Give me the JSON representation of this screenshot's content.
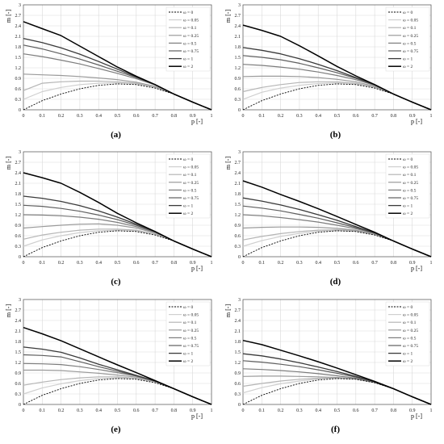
{
  "figure": {
    "panel_labels": [
      "(a)",
      "(b)",
      "(c)",
      "(d)",
      "(e)",
      "(f)"
    ]
  },
  "legend_entries": [
    "ω = 0",
    "ω = 0.05",
    "ω = 0.1",
    "ω = 0.25",
    "ω = 0.5",
    "ω = 0.75",
    "ω = 1",
    "ω = 2"
  ],
  "series_colors": [
    "#000000",
    "#cfcfcf",
    "#b5b5b5",
    "#9a9a9a",
    "#7c7c7c",
    "#5e5e5e",
    "#3a3a3a",
    "#000000"
  ],
  "chart_data": [
    {
      "type": "line",
      "panel": "(a)",
      "xlabel": "p [-]",
      "ylabel": "m [-]",
      "xlim": [
        0,
        1
      ],
      "ylim": [
        0,
        3
      ],
      "grid": true,
      "legend": "top-right",
      "xticks": [
        "0",
        "0.1",
        "0.2",
        "0.3",
        "0.4",
        "0.5",
        "0.6",
        "0.7",
        "0.8",
        "0.9",
        "1"
      ],
      "yticks": [
        "0",
        "0.3",
        "0.6",
        "0.9",
        "1.2",
        "1.5",
        "1.8",
        "2.1",
        "2.4",
        "2.7",
        "3"
      ],
      "x": [
        0,
        0.1,
        0.2,
        0.3,
        0.4,
        0.5,
        0.6,
        0.7,
        0.8,
        0.9,
        1.0
      ],
      "series": [
        {
          "name": "ω = 0",
          "values": [
            0.0,
            0.26,
            0.45,
            0.6,
            0.7,
            0.74,
            0.72,
            0.62,
            0.45,
            0.22,
            0.0
          ]
        },
        {
          "name": "ω = 0.05",
          "values": [
            0.3,
            0.52,
            0.64,
            0.72,
            0.76,
            0.77,
            0.74,
            0.64,
            0.45,
            0.22,
            0.0
          ]
        },
        {
          "name": "ω = 0.1",
          "values": [
            0.55,
            0.76,
            0.8,
            0.82,
            0.82,
            0.8,
            0.76,
            0.65,
            0.45,
            0.22,
            0.0
          ]
        },
        {
          "name": "ω = 0.25",
          "values": [
            1.02,
            1.0,
            0.98,
            0.95,
            0.91,
            0.86,
            0.79,
            0.67,
            0.45,
            0.22,
            0.0
          ]
        },
        {
          "name": "ω = 0.5",
          "values": [
            1.6,
            1.52,
            1.42,
            1.31,
            1.18,
            1.04,
            0.89,
            0.71,
            0.45,
            0.22,
            0.0
          ]
        },
        {
          "name": "ω = 0.75",
          "values": [
            1.85,
            1.74,
            1.6,
            1.45,
            1.28,
            1.1,
            0.92,
            0.72,
            0.45,
            0.22,
            0.0
          ]
        },
        {
          "name": "ω = 1",
          "values": [
            2.04,
            1.92,
            1.77,
            1.59,
            1.38,
            1.16,
            0.94,
            0.72,
            0.45,
            0.22,
            0.0
          ]
        },
        {
          "name": "ω = 2",
          "values": [
            2.52,
            2.32,
            2.12,
            1.82,
            1.52,
            1.22,
            0.96,
            0.72,
            0.45,
            0.22,
            0.0
          ]
        }
      ]
    },
    {
      "type": "line",
      "panel": "(b)",
      "xlabel": "p [-]",
      "ylabel": "m [-]",
      "xlim": [
        0,
        1
      ],
      "ylim": [
        0,
        3
      ],
      "grid": true,
      "legend": "top-right",
      "xticks": [
        "0",
        "0.1",
        "0.2",
        "0.3",
        "0.4",
        "0.5",
        "0.6",
        "0.7",
        "0.8",
        "0.9",
        "1"
      ],
      "yticks": [
        "0",
        "0.3",
        "0.6",
        "0.9",
        "1.2",
        "1.5",
        "1.8",
        "2.1",
        "2.4",
        "2.7",
        "3"
      ],
      "x": [
        0,
        0.1,
        0.2,
        0.3,
        0.4,
        0.5,
        0.6,
        0.7,
        0.8,
        0.9,
        1.0
      ],
      "series": [
        {
          "name": "ω = 0",
          "values": [
            0.0,
            0.26,
            0.45,
            0.6,
            0.7,
            0.74,
            0.72,
            0.62,
            0.45,
            0.22,
            0.0
          ]
        },
        {
          "name": "ω = 0.05",
          "values": [
            0.3,
            0.5,
            0.62,
            0.7,
            0.75,
            0.77,
            0.74,
            0.64,
            0.45,
            0.22,
            0.0
          ]
        },
        {
          "name": "ω = 0.1",
          "values": [
            0.52,
            0.64,
            0.72,
            0.78,
            0.8,
            0.8,
            0.76,
            0.65,
            0.45,
            0.22,
            0.0
          ]
        },
        {
          "name": "ω = 0.25",
          "values": [
            0.95,
            0.96,
            0.96,
            0.95,
            0.92,
            0.87,
            0.8,
            0.67,
            0.45,
            0.22,
            0.0
          ]
        },
        {
          "name": "ω = 0.5",
          "values": [
            1.3,
            1.27,
            1.22,
            1.16,
            1.08,
            0.98,
            0.86,
            0.7,
            0.45,
            0.22,
            0.0
          ]
        },
        {
          "name": "ω = 0.75",
          "values": [
            1.55,
            1.5,
            1.43,
            1.33,
            1.2,
            1.06,
            0.9,
            0.71,
            0.45,
            0.22,
            0.0
          ]
        },
        {
          "name": "ω = 1",
          "values": [
            1.78,
            1.7,
            1.6,
            1.46,
            1.3,
            1.12,
            0.92,
            0.72,
            0.45,
            0.22,
            0.0
          ]
        },
        {
          "name": "ω = 2",
          "values": [
            2.42,
            2.27,
            2.1,
            1.83,
            1.54,
            1.24,
            0.97,
            0.72,
            0.45,
            0.22,
            0.0
          ]
        }
      ]
    },
    {
      "type": "line",
      "panel": "(c)",
      "xlabel": "p [-]",
      "ylabel": "m [-]",
      "xlim": [
        0,
        1
      ],
      "ylim": [
        0,
        3
      ],
      "grid": true,
      "legend": "top-right",
      "xticks": [
        "0",
        "0.1",
        "0.2",
        "0.3",
        "0.4",
        "0.5",
        "0.6",
        "0.7",
        "0.8",
        "0.9",
        "1"
      ],
      "yticks": [
        "0",
        "0.3",
        "0.6",
        "0.9",
        "1.2",
        "1.5",
        "1.8",
        "2.1",
        "2.4",
        "2.7",
        "3"
      ],
      "x": [
        0,
        0.1,
        0.2,
        0.3,
        0.4,
        0.5,
        0.6,
        0.7,
        0.8,
        0.9,
        1.0
      ],
      "series": [
        {
          "name": "ω = 0",
          "values": [
            0.0,
            0.26,
            0.45,
            0.6,
            0.7,
            0.74,
            0.72,
            0.62,
            0.45,
            0.22,
            0.0
          ]
        },
        {
          "name": "ω = 0.05",
          "values": [
            0.3,
            0.48,
            0.6,
            0.69,
            0.74,
            0.76,
            0.74,
            0.64,
            0.45,
            0.22,
            0.0
          ]
        },
        {
          "name": "ω = 0.1",
          "values": [
            0.5,
            0.62,
            0.7,
            0.76,
            0.79,
            0.79,
            0.76,
            0.65,
            0.45,
            0.22,
            0.0
          ]
        },
        {
          "name": "ω = 0.25",
          "values": [
            0.82,
            0.86,
            0.9,
            0.93,
            0.94,
            0.9,
            0.82,
            0.68,
            0.45,
            0.22,
            0.0
          ]
        },
        {
          "name": "ω = 0.5",
          "values": [
            1.2,
            1.19,
            1.17,
            1.13,
            1.07,
            0.98,
            0.86,
            0.7,
            0.45,
            0.22,
            0.0
          ]
        },
        {
          "name": "ω = 0.75",
          "values": [
            1.47,
            1.44,
            1.38,
            1.3,
            1.19,
            1.06,
            0.9,
            0.71,
            0.45,
            0.22,
            0.0
          ]
        },
        {
          "name": "ω = 1",
          "values": [
            1.73,
            1.67,
            1.58,
            1.46,
            1.31,
            1.13,
            0.93,
            0.72,
            0.45,
            0.22,
            0.0
          ]
        },
        {
          "name": "ω = 2",
          "values": [
            2.4,
            2.26,
            2.1,
            1.84,
            1.55,
            1.24,
            0.97,
            0.72,
            0.45,
            0.22,
            0.0
          ]
        }
      ]
    },
    {
      "type": "line",
      "panel": "(d)",
      "xlabel": "p [-]",
      "ylabel": "m [-]",
      "xlim": [
        0,
        1
      ],
      "ylim": [
        0,
        3
      ],
      "grid": true,
      "legend": "top-right",
      "xticks": [
        "0",
        "0.1",
        "0.2",
        "0.3",
        "0.4",
        "0.5",
        "0.6",
        "0.7",
        "0.8",
        "0.9",
        "1"
      ],
      "yticks": [
        "0",
        "0.3",
        "0.6",
        "0.9",
        "1.2",
        "1.5",
        "1.8",
        "2.1",
        "2.4",
        "2.7",
        "3"
      ],
      "x": [
        0,
        0.1,
        0.2,
        0.3,
        0.4,
        0.5,
        0.6,
        0.7,
        0.8,
        0.9,
        1.0
      ],
      "series": [
        {
          "name": "ω = 0",
          "values": [
            0.0,
            0.26,
            0.45,
            0.6,
            0.7,
            0.74,
            0.72,
            0.62,
            0.45,
            0.22,
            0.0
          ]
        },
        {
          "name": "ω = 0.05",
          "values": [
            0.3,
            0.46,
            0.58,
            0.67,
            0.73,
            0.75,
            0.73,
            0.63,
            0.45,
            0.22,
            0.0
          ]
        },
        {
          "name": "ω = 0.1",
          "values": [
            0.48,
            0.58,
            0.66,
            0.72,
            0.76,
            0.77,
            0.74,
            0.64,
            0.45,
            0.22,
            0.0
          ]
        },
        {
          "name": "ω = 0.25",
          "values": [
            0.82,
            0.84,
            0.85,
            0.85,
            0.84,
            0.81,
            0.76,
            0.65,
            0.45,
            0.22,
            0.0
          ]
        },
        {
          "name": "ω = 0.5",
          "values": [
            1.2,
            1.17,
            1.12,
            1.06,
            0.99,
            0.9,
            0.8,
            0.67,
            0.45,
            0.22,
            0.0
          ]
        },
        {
          "name": "ω = 0.75",
          "values": [
            1.45,
            1.39,
            1.31,
            1.21,
            1.1,
            0.97,
            0.83,
            0.68,
            0.45,
            0.22,
            0.0
          ]
        },
        {
          "name": "ω = 1",
          "values": [
            1.68,
            1.59,
            1.48,
            1.35,
            1.2,
            1.04,
            0.86,
            0.68,
            0.45,
            0.22,
            0.0
          ]
        },
        {
          "name": "ω = 2",
          "values": [
            2.17,
            1.99,
            1.78,
            1.58,
            1.37,
            1.15,
            0.92,
            0.7,
            0.45,
            0.22,
            0.0
          ]
        }
      ]
    },
    {
      "type": "line",
      "panel": "(e)",
      "xlabel": "p [-]",
      "ylabel": "m [-]",
      "xlim": [
        0,
        1
      ],
      "ylim": [
        0,
        3
      ],
      "grid": true,
      "legend": "top-right",
      "xticks": [
        "0",
        "0.1",
        "0.2",
        "0.3",
        "0.4",
        "0.5",
        "0.6",
        "0.7",
        "0.8",
        "0.9",
        "1"
      ],
      "yticks": [
        "0",
        "0.3",
        "0.6",
        "0.9",
        "1.2",
        "1.5",
        "1.8",
        "2.1",
        "2.4",
        "2.7",
        "3"
      ],
      "x": [
        0,
        0.1,
        0.2,
        0.3,
        0.4,
        0.5,
        0.6,
        0.7,
        0.8,
        0.9,
        1.0
      ],
      "series": [
        {
          "name": "ω = 0",
          "values": [
            0.0,
            0.26,
            0.45,
            0.6,
            0.7,
            0.74,
            0.72,
            0.62,
            0.45,
            0.22,
            0.0
          ]
        },
        {
          "name": "ω = 0.05",
          "values": [
            0.3,
            0.47,
            0.59,
            0.68,
            0.74,
            0.76,
            0.74,
            0.64,
            0.45,
            0.22,
            0.0
          ]
        },
        {
          "name": "ω = 0.1",
          "values": [
            0.55,
            0.64,
            0.71,
            0.76,
            0.79,
            0.79,
            0.75,
            0.65,
            0.45,
            0.22,
            0.0
          ]
        },
        {
          "name": "ω = 0.25",
          "values": [
            0.98,
            0.98,
            0.97,
            0.93,
            0.89,
            0.84,
            0.78,
            0.66,
            0.45,
            0.22,
            0.0
          ]
        },
        {
          "name": "ω = 0.5",
          "values": [
            1.17,
            1.16,
            1.14,
            1.08,
            1.0,
            0.91,
            0.81,
            0.67,
            0.45,
            0.22,
            0.0
          ]
        },
        {
          "name": "ω = 0.75",
          "values": [
            1.42,
            1.4,
            1.36,
            1.22,
            1.08,
            0.95,
            0.82,
            0.67,
            0.45,
            0.22,
            0.0
          ]
        },
        {
          "name": "ω = 1",
          "values": [
            1.64,
            1.58,
            1.49,
            1.33,
            1.15,
            0.99,
            0.83,
            0.67,
            0.45,
            0.22,
            0.0
          ]
        },
        {
          "name": "ω = 2",
          "values": [
            2.2,
            2.02,
            1.82,
            1.59,
            1.36,
            1.13,
            0.91,
            0.68,
            0.45,
            0.22,
            0.0
          ]
        }
      ]
    },
    {
      "type": "line",
      "panel": "(f)",
      "xlabel": "p [-]",
      "ylabel": "m [-]",
      "xlim": [
        0,
        1
      ],
      "ylim": [
        0,
        3
      ],
      "grid": true,
      "legend": "top-right",
      "xticks": [
        "0",
        "0.1",
        "0.2",
        "0.3",
        "0.4",
        "0.5",
        "0.6",
        "0.7",
        "0.8",
        "0.9",
        "1"
      ],
      "yticks": [
        "0",
        "0.3",
        "0.6",
        "0.9",
        "1.2",
        "1.5",
        "1.8",
        "2.1",
        "2.4",
        "2.7",
        "3"
      ],
      "x": [
        0,
        0.1,
        0.2,
        0.3,
        0.4,
        0.5,
        0.6,
        0.7,
        0.8,
        0.9,
        1.0
      ],
      "series": [
        {
          "name": "ω = 0",
          "values": [
            0.0,
            0.26,
            0.45,
            0.6,
            0.7,
            0.74,
            0.72,
            0.62,
            0.45,
            0.22,
            0.0
          ]
        },
        {
          "name": "ω = 0.05",
          "values": [
            0.33,
            0.48,
            0.59,
            0.67,
            0.73,
            0.75,
            0.73,
            0.63,
            0.45,
            0.22,
            0.0
          ]
        },
        {
          "name": "ω = 0.1",
          "values": [
            0.52,
            0.6,
            0.67,
            0.72,
            0.75,
            0.76,
            0.73,
            0.63,
            0.45,
            0.22,
            0.0
          ]
        },
        {
          "name": "ω = 0.25",
          "values": [
            0.8,
            0.81,
            0.81,
            0.8,
            0.79,
            0.77,
            0.73,
            0.63,
            0.45,
            0.22,
            0.0
          ]
        },
        {
          "name": "ω = 0.5",
          "values": [
            1.02,
            1.0,
            0.97,
            0.93,
            0.88,
            0.82,
            0.75,
            0.64,
            0.45,
            0.22,
            0.0
          ]
        },
        {
          "name": "ω = 0.75",
          "values": [
            1.25,
            1.21,
            1.15,
            1.08,
            0.99,
            0.89,
            0.78,
            0.64,
            0.45,
            0.22,
            0.0
          ]
        },
        {
          "name": "ω = 1",
          "values": [
            1.45,
            1.39,
            1.3,
            1.19,
            1.07,
            0.94,
            0.8,
            0.65,
            0.45,
            0.22,
            0.0
          ]
        },
        {
          "name": "ω = 2",
          "values": [
            1.83,
            1.71,
            1.55,
            1.39,
            1.22,
            1.04,
            0.85,
            0.66,
            0.45,
            0.22,
            0.0
          ]
        }
      ]
    }
  ]
}
